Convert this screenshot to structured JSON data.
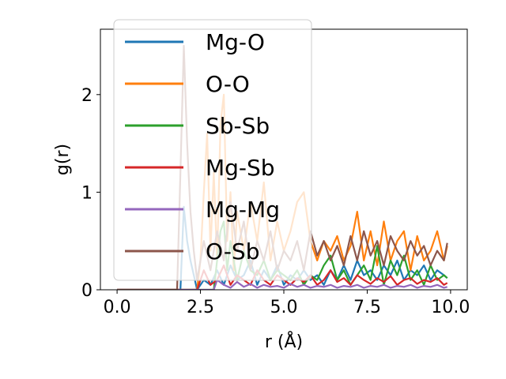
{
  "chart_data": {
    "type": "line",
    "title": "",
    "xlabel": "r (Å)",
    "ylabel": "g(r)",
    "xlim": [
      -0.5,
      10.5
    ],
    "ylim": [
      0,
      2.67
    ],
    "xticks": [
      0.0,
      2.5,
      5.0,
      7.5,
      10.0
    ],
    "xtick_labels": [
      "0.0",
      "2.5",
      "5.0",
      "7.5",
      "10.0"
    ],
    "yticks": [
      0,
      1,
      2
    ],
    "ytick_labels": [
      "0",
      "1",
      "2"
    ],
    "grid": false,
    "legend_position": "top-left",
    "series": [
      {
        "name": "Mg-O",
        "color": "#1f77b4",
        "x": [
          0,
          1.9,
          2.0,
          2.1,
          2.2,
          2.4,
          2.6,
          2.8,
          3.0,
          3.2,
          3.4,
          3.6,
          3.8,
          4.0,
          4.2,
          4.4,
          4.6,
          4.8,
          5.0,
          5.2,
          5.4,
          5.6,
          5.8,
          6.0,
          6.2,
          6.4,
          6.6,
          6.8,
          7.0,
          7.2,
          7.4,
          7.6,
          7.8,
          8.0,
          8.2,
          8.4,
          8.6,
          8.8,
          9.0,
          9.2,
          9.4,
          9.6,
          9.8,
          9.9
        ],
        "y": [
          0,
          0,
          0.85,
          0.5,
          0.3,
          0,
          0.1,
          0.05,
          0.2,
          0.05,
          0.25,
          0.1,
          0.15,
          0.3,
          0.05,
          0.2,
          0.1,
          0.25,
          0.05,
          0.15,
          0.1,
          0.2,
          0.1,
          0.15,
          0.05,
          0.2,
          0.1,
          0.25,
          0.1,
          0.3,
          0.15,
          0.2,
          0.1,
          0.25,
          0.15,
          0.3,
          0.1,
          0.2,
          0.15,
          0.25,
          0.1,
          0.2,
          0.15,
          0.12
        ]
      },
      {
        "name": "O-O",
        "color": "#ff7f0e",
        "x": [
          0,
          2.4,
          2.5,
          2.6,
          2.7,
          2.8,
          2.9,
          3.0,
          3.1,
          3.2,
          3.3,
          3.4,
          3.5,
          3.6,
          3.8,
          4.0,
          4.2,
          4.4,
          4.6,
          4.8,
          5.0,
          5.2,
          5.4,
          5.6,
          5.8,
          6.0,
          6.2,
          6.4,
          6.6,
          6.8,
          7.0,
          7.2,
          7.4,
          7.6,
          7.8,
          8.0,
          8.2,
          8.4,
          8.6,
          8.8,
          9.0,
          9.2,
          9.4,
          9.6,
          9.8,
          9.9
        ],
        "y": [
          0,
          0,
          0.3,
          1.0,
          1.6,
          0.4,
          1.2,
          0.3,
          1.7,
          2.0,
          0.5,
          1.0,
          0.2,
          0.8,
          0.4,
          0.9,
          0.5,
          1.1,
          0.3,
          0.7,
          0.4,
          0.6,
          0.9,
          1.0,
          0.5,
          0.3,
          0.5,
          0.4,
          0.55,
          0.3,
          0.45,
          0.8,
          0.3,
          0.6,
          0.25,
          0.7,
          0.3,
          0.5,
          0.6,
          0.2,
          0.55,
          0.3,
          0.4,
          0.6,
          0.3,
          0.45
        ]
      },
      {
        "name": "Sb-Sb",
        "color": "#2ca02c",
        "x": [
          0,
          2.9,
          3.0,
          3.1,
          3.2,
          3.3,
          3.4,
          3.6,
          3.8,
          4.0,
          4.2,
          4.4,
          4.6,
          4.8,
          5.0,
          5.2,
          5.4,
          5.6,
          5.8,
          6.0,
          6.2,
          6.4,
          6.6,
          6.8,
          7.0,
          7.2,
          7.4,
          7.6,
          7.8,
          8.0,
          8.2,
          8.4,
          8.6,
          8.8,
          9.0,
          9.2,
          9.4,
          9.6,
          9.8,
          9.9
        ],
        "y": [
          0,
          0,
          0.3,
          0.6,
          0.7,
          0.2,
          0.5,
          0.1,
          0.4,
          0.2,
          0.15,
          0.3,
          0.1,
          0.2,
          0.15,
          0.1,
          0.2,
          0.05,
          0.15,
          0.1,
          0.25,
          0.35,
          0.1,
          0.2,
          0.05,
          0.15,
          0.25,
          0.1,
          0.45,
          0.05,
          0.3,
          0.15,
          0.35,
          0.1,
          0.2,
          0.05,
          0.25,
          0.1,
          0.15,
          0.12
        ]
      },
      {
        "name": "Mg-Sb",
        "color": "#d62728",
        "x": [
          0,
          2.4,
          2.6,
          2.8,
          3.0,
          3.2,
          3.4,
          3.6,
          3.8,
          4.0,
          4.2,
          4.4,
          4.6,
          4.8,
          5.0,
          5.2,
          5.4,
          5.6,
          5.8,
          6.0,
          6.2,
          6.4,
          6.6,
          6.8,
          7.0,
          7.2,
          7.4,
          7.6,
          7.8,
          8.0,
          8.2,
          8.4,
          8.6,
          8.8,
          9.0,
          9.2,
          9.4,
          9.6,
          9.8,
          9.9
        ],
        "y": [
          0,
          0,
          0.2,
          0.05,
          0.1,
          0.25,
          0.05,
          0.15,
          0.1,
          0.05,
          0.2,
          0.1,
          0.05,
          0.15,
          0.1,
          0.05,
          0.12,
          0.08,
          0.15,
          0.05,
          0.1,
          0.2,
          0.08,
          0.12,
          0.05,
          0.15,
          0.1,
          0.06,
          0.12,
          0.08,
          0.14,
          0.05,
          0.1,
          0.12,
          0.06,
          0.1,
          0.08,
          0.12,
          0.05,
          0.07
        ]
      },
      {
        "name": "Mg-Mg",
        "color": "#9467bd",
        "x": [
          0,
          2.9,
          3.0,
          3.2,
          3.4,
          3.6,
          3.8,
          4.0,
          4.2,
          4.4,
          4.6,
          4.8,
          5.0,
          5.2,
          5.4,
          5.6,
          5.8,
          6.0,
          6.2,
          6.4,
          6.6,
          6.8,
          7.0,
          7.2,
          7.4,
          7.6,
          7.8,
          8.0,
          8.2,
          8.4,
          8.6,
          8.8,
          9.0,
          9.2,
          9.4,
          9.6,
          9.8,
          9.9
        ],
        "y": [
          0,
          0,
          0.1,
          0.05,
          0.02,
          0.08,
          0.03,
          0.06,
          0.02,
          0.05,
          0.03,
          0.04,
          0.02,
          0.06,
          0.03,
          0.05,
          0.02,
          0.04,
          0.03,
          0.05,
          0.02,
          0.04,
          0.03,
          0.05,
          0.02,
          0.04,
          0.03,
          0.05,
          0.02,
          0.04,
          0.03,
          0.05,
          0.02,
          0.04,
          0.03,
          0.05,
          0.02,
          0.03
        ]
      },
      {
        "name": "O-Sb",
        "color": "#8c564b",
        "x": [
          0,
          1.8,
          1.9,
          2.0,
          2.1,
          2.2,
          2.3,
          2.4,
          2.6,
          2.8,
          3.0,
          3.2,
          3.4,
          3.6,
          3.8,
          4.0,
          4.2,
          4.4,
          4.6,
          4.8,
          5.0,
          5.2,
          5.4,
          5.6,
          5.8,
          6.0,
          6.2,
          6.4,
          6.6,
          6.8,
          7.0,
          7.2,
          7.4,
          7.6,
          7.8,
          8.0,
          8.2,
          8.4,
          8.6,
          8.8,
          9.0,
          9.2,
          9.4,
          9.6,
          9.8,
          9.9
        ],
        "y": [
          0,
          0,
          1.2,
          2.5,
          1.5,
          0.8,
          0.4,
          0.1,
          0.5,
          0.2,
          0.6,
          0.3,
          0.9,
          0.4,
          0.7,
          0.2,
          0.5,
          0.3,
          0.6,
          0.2,
          0.4,
          0.3,
          0.5,
          0.2,
          0.6,
          0.35,
          0.5,
          0.3,
          0.45,
          0.25,
          0.55,
          0.3,
          0.6,
          0.35,
          0.5,
          0.25,
          0.55,
          0.4,
          0.3,
          0.5,
          0.35,
          0.45,
          0.25,
          0.4,
          0.3,
          0.48
        ]
      }
    ]
  }
}
